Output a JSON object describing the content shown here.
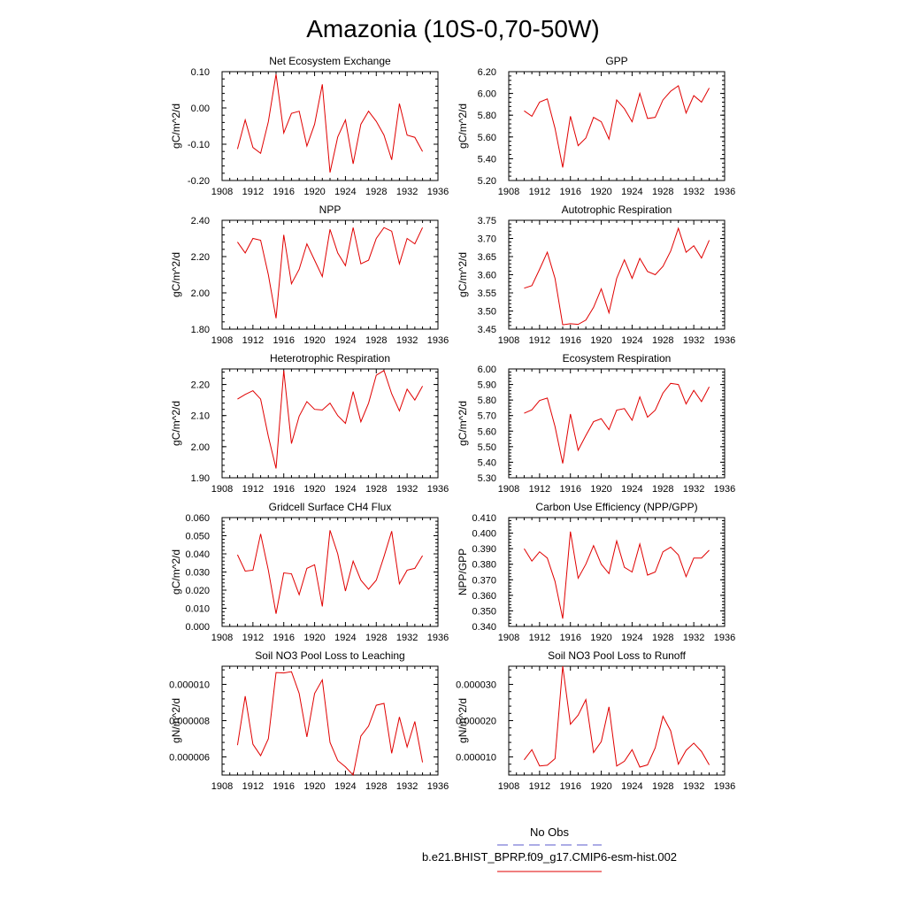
{
  "figure": {
    "title": "Amazonia (10S-0,70-50W)",
    "legend": [
      {
        "label": "No Obs",
        "color": "#5a5acd",
        "dash": true
      },
      {
        "label": "b.e21.BHIST_BPRP.f09_g17.CMIP6-esm-hist.002",
        "color": "#e00000",
        "dash": false
      }
    ]
  },
  "chart_data": [
    {
      "type": "line",
      "title": "Net Ecosystem Exchange",
      "ylabel": "gC/m^2/d",
      "xlim": [
        1908,
        1936
      ],
      "ylim": [
        -0.2,
        0.1
      ],
      "xticks": [
        "1908",
        "1912",
        "1916",
        "1920",
        "1924",
        "1928",
        "1932",
        "1936"
      ],
      "yticks": [
        -0.2,
        -0.1,
        0.0,
        0.1
      ],
      "yticklabels": [
        "-0.20",
        "-0.10",
        "0.00",
        "0.10"
      ],
      "series": [
        {
          "name": "b.e21.BHIST_BPRP.f09_g17.CMIP6-esm-hist.002",
          "color": "#e00000",
          "x": [
            1910,
            1911,
            1912,
            1913,
            1914,
            1915,
            1916,
            1917,
            1918,
            1919,
            1920,
            1921,
            1922,
            1923,
            1924,
            1925,
            1926,
            1927,
            1928,
            1929,
            1930,
            1931,
            1932,
            1933,
            1934
          ],
          "y": [
            -0.113,
            -0.033,
            -0.109,
            -0.125,
            -0.038,
            0.093,
            -0.069,
            -0.015,
            -0.009,
            -0.105,
            -0.045,
            0.065,
            -0.178,
            -0.08,
            -0.033,
            -0.154,
            -0.045,
            -0.009,
            -0.037,
            -0.075,
            -0.143,
            0.012,
            -0.075,
            -0.081,
            -0.12
          ]
        }
      ]
    },
    {
      "type": "line",
      "title": "GPP",
      "ylabel": "gC/m^2/d",
      "xlim": [
        1908,
        1936
      ],
      "ylim": [
        5.2,
        6.2
      ],
      "xticks": [
        "1908",
        "1912",
        "1916",
        "1920",
        "1924",
        "1928",
        "1932",
        "1936"
      ],
      "yticks": [
        5.2,
        5.4,
        5.6,
        5.8,
        6.0,
        6.2
      ],
      "yticklabels": [
        "5.20",
        "5.40",
        "5.60",
        "5.80",
        "6.00",
        "6.20"
      ],
      "series": [
        {
          "name": "b.e21.BHIST_BPRP.f09_g17.CMIP6-esm-hist.002",
          "color": "#e00000",
          "x": [
            1910,
            1911,
            1912,
            1913,
            1914,
            1915,
            1916,
            1917,
            1918,
            1919,
            1920,
            1921,
            1922,
            1923,
            1924,
            1925,
            1926,
            1927,
            1928,
            1929,
            1930,
            1931,
            1932,
            1933,
            1934
          ],
          "y": [
            5.84,
            5.79,
            5.92,
            5.95,
            5.68,
            5.32,
            5.79,
            5.52,
            5.59,
            5.78,
            5.74,
            5.58,
            5.94,
            5.86,
            5.74,
            6.0,
            5.77,
            5.78,
            5.94,
            6.02,
            6.07,
            5.82,
            5.98,
            5.92,
            6.05
          ]
        }
      ]
    },
    {
      "type": "line",
      "title": "NPP",
      "ylabel": "gC/m^2/d",
      "xlim": [
        1908,
        1936
      ],
      "ylim": [
        1.8,
        2.4
      ],
      "xticks": [
        "1908",
        "1912",
        "1916",
        "1920",
        "1924",
        "1928",
        "1932",
        "1936"
      ],
      "yticks": [
        1.8,
        2.0,
        2.2,
        2.4
      ],
      "yticklabels": [
        "1.80",
        "2.00",
        "2.20",
        "2.40"
      ],
      "series": [
        {
          "name": "b.e21.BHIST_BPRP.f09_g17.CMIP6-esm-hist.002",
          "color": "#e00000",
          "x": [
            1910,
            1911,
            1912,
            1913,
            1914,
            1915,
            1916,
            1917,
            1918,
            1919,
            1920,
            1921,
            1922,
            1923,
            1924,
            1925,
            1926,
            1927,
            1928,
            1929,
            1930,
            1931,
            1932,
            1933,
            1934
          ],
          "y": [
            2.28,
            2.22,
            2.3,
            2.29,
            2.1,
            1.86,
            2.32,
            2.05,
            2.13,
            2.27,
            2.18,
            2.09,
            2.35,
            2.22,
            2.15,
            2.36,
            2.16,
            2.18,
            2.3,
            2.36,
            2.34,
            2.16,
            2.3,
            2.27,
            2.36
          ]
        }
      ]
    },
    {
      "type": "line",
      "title": "Autotrophic Respiration",
      "ylabel": "gC/m^2/d",
      "xlim": [
        1908,
        1936
      ],
      "ylim": [
        3.45,
        3.75
      ],
      "xticks": [
        "1908",
        "1912",
        "1916",
        "1920",
        "1924",
        "1928",
        "1932",
        "1936"
      ],
      "yticks": [
        3.45,
        3.5,
        3.55,
        3.6,
        3.65,
        3.7,
        3.75
      ],
      "yticklabels": [
        "3.45",
        "3.50",
        "3.55",
        "3.60",
        "3.65",
        "3.70",
        "3.75"
      ],
      "series": [
        {
          "name": "b.e21.BHIST_BPRP.f09_g17.CMIP6-esm-hist.002",
          "color": "#e00000",
          "x": [
            1910,
            1911,
            1912,
            1913,
            1914,
            1915,
            1916,
            1917,
            1918,
            1919,
            1920,
            1921,
            1922,
            1923,
            1924,
            1925,
            1926,
            1927,
            1928,
            1929,
            1930,
            1931,
            1932,
            1933,
            1934
          ],
          "y": [
            3.563,
            3.57,
            3.615,
            3.662,
            3.59,
            3.462,
            3.465,
            3.463,
            3.475,
            3.51,
            3.561,
            3.495,
            3.59,
            3.641,
            3.59,
            3.645,
            3.609,
            3.6,
            3.623,
            3.665,
            3.728,
            3.662,
            3.68,
            3.646,
            3.695
          ]
        }
      ]
    },
    {
      "type": "line",
      "title": "Heterotrophic Respiration",
      "ylabel": "gC/m^2/d",
      "xlim": [
        1908,
        1936
      ],
      "ylim": [
        1.9,
        2.25
      ],
      "xticks": [
        "1908",
        "1912",
        "1916",
        "1920",
        "1924",
        "1928",
        "1932",
        "1936"
      ],
      "yticks": [
        1.9,
        2.0,
        2.1,
        2.2
      ],
      "yticklabels": [
        "1.90",
        "2.00",
        "2.10",
        "2.20"
      ],
      "series": [
        {
          "name": "b.e21.BHIST_BPRP.f09_g17.CMIP6-esm-hist.002",
          "color": "#e00000",
          "x": [
            1910,
            1911,
            1912,
            1913,
            1914,
            1915,
            1916,
            1917,
            1918,
            1919,
            1920,
            1921,
            1922,
            1923,
            1924,
            1925,
            1926,
            1927,
            1928,
            1929,
            1930,
            1931,
            1932,
            1933,
            1934
          ],
          "y": [
            2.153,
            2.168,
            2.18,
            2.153,
            2.033,
            1.93,
            2.245,
            2.01,
            2.098,
            2.145,
            2.12,
            2.118,
            2.14,
            2.1,
            2.075,
            2.177,
            2.08,
            2.14,
            2.23,
            2.245,
            2.17,
            2.115,
            2.185,
            2.15,
            2.195
          ]
        }
      ]
    },
    {
      "type": "line",
      "title": "Ecosystem Respiration",
      "ylabel": "gC/m^2/d",
      "xlim": [
        1908,
        1936
      ],
      "ylim": [
        5.3,
        6.0
      ],
      "xticks": [
        "1908",
        "1912",
        "1916",
        "1920",
        "1924",
        "1928",
        "1932",
        "1936"
      ],
      "yticks": [
        5.3,
        5.4,
        5.5,
        5.6,
        5.7,
        5.8,
        5.9,
        6.0
      ],
      "yticklabels": [
        "5.30",
        "5.40",
        "5.50",
        "5.60",
        "5.70",
        "5.80",
        "5.90",
        "6.00"
      ],
      "series": [
        {
          "name": "b.e21.BHIST_BPRP.f09_g17.CMIP6-esm-hist.002",
          "color": "#e00000",
          "x": [
            1910,
            1911,
            1912,
            1913,
            1914,
            1915,
            1916,
            1917,
            1918,
            1919,
            1920,
            1921,
            1922,
            1923,
            1924,
            1925,
            1926,
            1927,
            1928,
            1929,
            1930,
            1931,
            1932,
            1933,
            1934
          ],
          "y": [
            5.715,
            5.737,
            5.797,
            5.813,
            5.63,
            5.392,
            5.71,
            5.477,
            5.572,
            5.661,
            5.68,
            5.61,
            5.735,
            5.745,
            5.67,
            5.82,
            5.69,
            5.735,
            5.845,
            5.907,
            5.9,
            5.775,
            5.862,
            5.79,
            5.885
          ]
        }
      ]
    },
    {
      "type": "line",
      "title": "Gridcell Surface CH4 Flux",
      "ylabel": "gC/m^2/d",
      "xlim": [
        1908,
        1936
      ],
      "ylim": [
        0.0,
        0.06
      ],
      "xticks": [
        "1908",
        "1912",
        "1916",
        "1920",
        "1924",
        "1928",
        "1932",
        "1936"
      ],
      "yticks": [
        0.0,
        0.01,
        0.02,
        0.03,
        0.04,
        0.05,
        0.06
      ],
      "yticklabels": [
        "0.000",
        "0.010",
        "0.020",
        "0.030",
        "0.040",
        "0.050",
        "0.060"
      ],
      "series": [
        {
          "name": "b.e21.BHIST_BPRP.f09_g17.CMIP6-esm-hist.002",
          "color": "#e00000",
          "x": [
            1910,
            1911,
            1912,
            1913,
            1914,
            1915,
            1916,
            1917,
            1918,
            1919,
            1920,
            1921,
            1922,
            1923,
            1924,
            1925,
            1926,
            1927,
            1928,
            1929,
            1930,
            1931,
            1932,
            1933,
            1934
          ],
          "y": [
            0.0395,
            0.0305,
            0.031,
            0.051,
            0.031,
            0.007,
            0.0295,
            0.029,
            0.0175,
            0.032,
            0.034,
            0.011,
            0.053,
            0.04,
            0.0195,
            0.036,
            0.0255,
            0.0205,
            0.0255,
            0.0385,
            0.0525,
            0.0235,
            0.031,
            0.032,
            0.039
          ]
        }
      ]
    },
    {
      "type": "line",
      "title": "Carbon Use Efficiency (NPP/GPP)",
      "ylabel": "NPP/GPP",
      "xlim": [
        1908,
        1936
      ],
      "ylim": [
        0.34,
        0.41
      ],
      "xticks": [
        "1908",
        "1912",
        "1916",
        "1920",
        "1924",
        "1928",
        "1932",
        "1936"
      ],
      "yticks": [
        0.34,
        0.35,
        0.36,
        0.37,
        0.38,
        0.39,
        0.4,
        0.41
      ],
      "yticklabels": [
        "0.340",
        "0.350",
        "0.360",
        "0.370",
        "0.380",
        "0.390",
        "0.400",
        "0.410"
      ],
      "series": [
        {
          "name": "b.e21.BHIST_BPRP.f09_g17.CMIP6-esm-hist.002",
          "color": "#e00000",
          "x": [
            1910,
            1911,
            1912,
            1913,
            1914,
            1915,
            1916,
            1917,
            1918,
            1919,
            1920,
            1921,
            1922,
            1923,
            1924,
            1925,
            1926,
            1927,
            1928,
            1929,
            1930,
            1931,
            1932,
            1933,
            1934
          ],
          "y": [
            0.39,
            0.382,
            0.388,
            0.384,
            0.369,
            0.345,
            0.401,
            0.371,
            0.38,
            0.392,
            0.38,
            0.374,
            0.395,
            0.378,
            0.375,
            0.393,
            0.373,
            0.375,
            0.388,
            0.391,
            0.386,
            0.372,
            0.384,
            0.384,
            0.389
          ]
        }
      ]
    },
    {
      "type": "line",
      "title": "Soil NO3 Pool Loss to Leaching",
      "ylabel": "gN/m^2/d",
      "xlim": [
        1908,
        1936
      ],
      "ylim": [
        5e-06,
        1.1e-05
      ],
      "xticks": [
        "1908",
        "1912",
        "1916",
        "1920",
        "1924",
        "1928",
        "1932",
        "1936"
      ],
      "yticks": [
        6e-06,
        8e-06,
        1e-05
      ],
      "yticklabels": [
        "0.000006",
        "0.000008",
        "0.000010"
      ],
      "series": [
        {
          "name": "b.e21.BHIST_BPRP.f09_g17.CMIP6-esm-hist.002",
          "color": "#e00000",
          "x": [
            1910,
            1911,
            1912,
            1913,
            1914,
            1915,
            1916,
            1917,
            1918,
            1919,
            1920,
            1921,
            1922,
            1923,
            1924,
            1925,
            1926,
            1927,
            1928,
            1929,
            1930,
            1931,
            1932,
            1933,
            1934
          ],
          "y": [
            6.65e-06,
            9.35e-06,
            6.7e-06,
            6.07e-06,
            7e-06,
            1.065e-05,
            1.063e-05,
            1.07e-05,
            9.5e-06,
            7.1e-06,
            9.5e-06,
            1.025e-05,
            6.8e-06,
            5.8e-06,
            5.45e-06,
            5e-06,
            7.15e-06,
            7.7e-06,
            8.85e-06,
            8.95e-06,
            6.2e-06,
            8.2e-06,
            6.55e-06,
            7.95e-06,
            5.7e-06
          ]
        }
      ]
    },
    {
      "type": "line",
      "title": "Soil NO3 Pool Loss to Runoff",
      "ylabel": "gN/m^2/d",
      "xlim": [
        1908,
        1936
      ],
      "ylim": [
        5e-06,
        3.5e-05
      ],
      "xticks": [
        "1908",
        "1912",
        "1916",
        "1920",
        "1924",
        "1928",
        "1932",
        "1936"
      ],
      "yticks": [
        1e-05,
        2e-05,
        3e-05
      ],
      "yticklabels": [
        "0.000010",
        "0.000020",
        "0.000030"
      ],
      "series": [
        {
          "name": "b.e21.BHIST_BPRP.f09_g17.CMIP6-esm-hist.002",
          "color": "#e00000",
          "x": [
            1910,
            1911,
            1912,
            1913,
            1914,
            1915,
            1916,
            1917,
            1918,
            1919,
            1920,
            1921,
            1922,
            1923,
            1924,
            1925,
            1926,
            1927,
            1928,
            1929,
            1930,
            1931,
            1932,
            1933,
            1934
          ],
          "y": [
            9.2e-06,
            1.2e-05,
            7.5e-06,
            7.7e-06,
            9.5e-06,
            3.5e-05,
            1.9e-05,
            2.15e-05,
            2.58e-05,
            1.12e-05,
            1.42e-05,
            2.38e-05,
            7.5e-06,
            8.8e-06,
            1.2e-05,
            7.2e-06,
            7.8e-06,
            1.25e-05,
            2.12e-05,
            1.72e-05,
            8e-06,
            1.18e-05,
            1.38e-05,
            1.15e-05,
            7.8e-06
          ]
        }
      ]
    }
  ]
}
